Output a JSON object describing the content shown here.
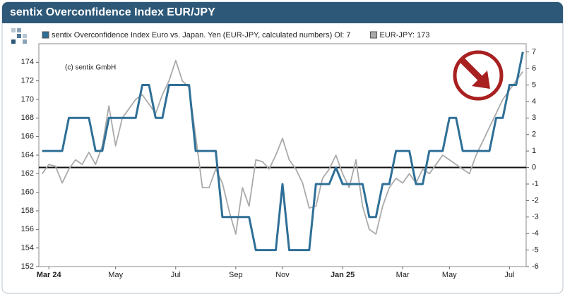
{
  "chart_data": {
    "type": "line",
    "title": "sentix Overconfidence Index EUR/JPY",
    "annotation": "(c) sentix GmbH",
    "categories": [
      null,
      "Mar 24",
      null,
      null,
      null,
      null,
      null,
      null,
      null,
      null,
      null,
      "May",
      null,
      null,
      null,
      null,
      null,
      null,
      null,
      null,
      "Jul",
      null,
      null,
      null,
      null,
      null,
      null,
      null,
      null,
      "Sep",
      null,
      null,
      null,
      null,
      null,
      null,
      "Nov",
      null,
      null,
      null,
      null,
      null,
      null,
      null,
      null,
      "Jan 25",
      null,
      null,
      null,
      null,
      null,
      null,
      null,
      null,
      "Mar",
      null,
      null,
      null,
      null,
      null,
      null,
      "May",
      null,
      null,
      null,
      null,
      null,
      null,
      null,
      null,
      "Jul",
      null,
      null
    ],
    "series": [
      {
        "name": "sentix Overconfidence Index Euro vs. Japan. Yen (EUR-JPY, calculated numbers) Ol: 7",
        "color": "#2f6f97",
        "axis": "y2",
        "values": [
          1,
          1,
          1,
          1,
          3,
          3,
          3,
          3,
          1,
          1,
          3,
          3,
          3,
          3,
          3,
          5,
          5,
          3,
          3,
          5,
          5,
          5,
          5,
          1,
          1,
          1,
          1,
          -3,
          -3,
          -3,
          -3,
          -3,
          -5,
          -5,
          -5,
          -5,
          -1,
          -5,
          -5,
          -5,
          -5,
          -1,
          -1,
          -1,
          0,
          -1,
          -1,
          -1,
          -1,
          -3,
          -3,
          -1,
          -1,
          1,
          1,
          1,
          -1,
          -1,
          1,
          1,
          1,
          3,
          3,
          1,
          1,
          1,
          1,
          1,
          3,
          3,
          5,
          5,
          7
        ]
      },
      {
        "name": "EUR-JPY: 173",
        "color": "#aaaaaa",
        "values": [
          162,
          163,
          162.8,
          161,
          162.5,
          163.5,
          163,
          164.3,
          163,
          165,
          169.3,
          165,
          168,
          169,
          170,
          170.5,
          169.5,
          168.5,
          170.5,
          172,
          174.2,
          172,
          171.3,
          166,
          160.5,
          160.5,
          162.5,
          161,
          158,
          155.5,
          160.5,
          158.5,
          163.5,
          163.3,
          162.5,
          164,
          165.8,
          163.5,
          162.5,
          161,
          158.3,
          158.5,
          161.5,
          162.5,
          164,
          162,
          160.5,
          163.5,
          158.5,
          156,
          155.5,
          158.5,
          160.5,
          161.5,
          161,
          162,
          161,
          162.5,
          162,
          163,
          164,
          163.5,
          163,
          162.5,
          162,
          164,
          165.5,
          167,
          168.5,
          170,
          171,
          172,
          173
        ]
      }
    ],
    "ylim": [
      152,
      176
    ],
    "yticks": [
      152,
      154,
      156,
      158,
      160,
      162,
      164,
      166,
      168,
      170,
      172,
      174
    ],
    "y2lim": [
      -6,
      7.5
    ],
    "y2ticks": [
      -6,
      -5,
      -4,
      -3,
      -2,
      -1,
      0,
      1,
      2,
      3,
      4,
      5,
      6,
      7
    ],
    "grid": false
  }
}
